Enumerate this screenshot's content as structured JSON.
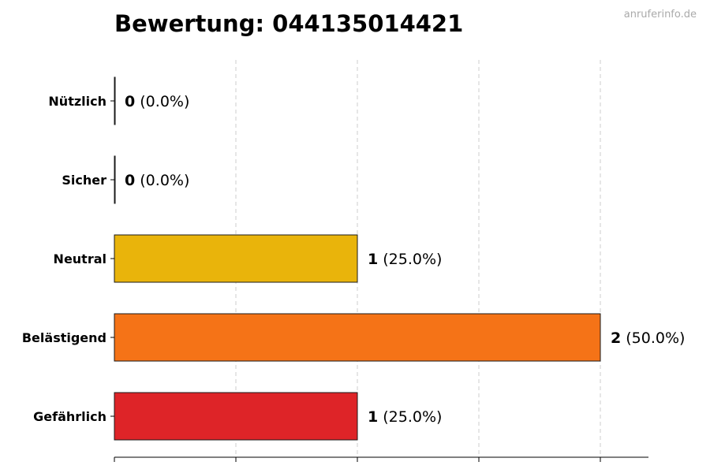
{
  "watermark": "anruferinfo.de",
  "chart_data": {
    "type": "bar",
    "orientation": "horizontal",
    "title": "Bewertung: 044135014421",
    "categories": [
      "Nützlich",
      "Sicher",
      "Neutral",
      "Belästigend",
      "Gefährlich"
    ],
    "values": [
      0,
      0,
      1,
      2,
      1
    ],
    "value_labels": [
      "(0.0%)",
      "(0.0%)",
      "(25.0%)",
      "(50.0%)",
      "(25.0%)"
    ],
    "colors": [
      "#2e9e44",
      "#6aa84f",
      "#e9b40b",
      "#f57317",
      "#de2428"
    ],
    "xlim": [
      0,
      2.2
    ],
    "xticks": [
      0,
      0.5,
      1,
      1.5,
      2
    ],
    "grid": true,
    "xlabel": "",
    "ylabel": ""
  }
}
